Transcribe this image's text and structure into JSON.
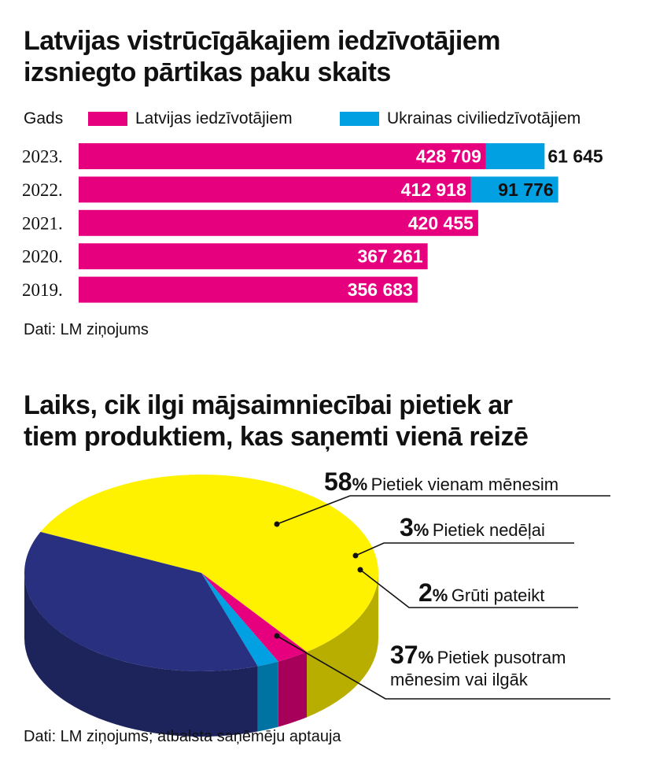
{
  "bar_section": {
    "title_line1": "Latvijas vistrūcīgākajiem iedzīvotājiem",
    "title_line2": "izsniegto pārtikas paku skaits",
    "legend_header": "Gads",
    "source": "Dati: LM ziņojums"
  },
  "pie_section": {
    "title_line1": "Laiks, cik ilgi mājsaimniecībai pietiek ar",
    "title_line2": "tiem produktiem, kas saņemti vienā reizē",
    "source": "Dati: LM ziņojums; atbalsta saņēmēju aptauja",
    "labels": [
      {
        "pct": "58",
        "sign": "%",
        "text1": "Pietiek vienam mēnesim",
        "text2": ""
      },
      {
        "pct": "3",
        "sign": "%",
        "text1": "Pietiek nedēļai",
        "text2": ""
      },
      {
        "pct": "2",
        "sign": "%",
        "text1": "Grūti pateikt",
        "text2": ""
      },
      {
        "pct": "37",
        "sign": "%",
        "text1": "Pietiek pusotram",
        "text2": "mēnesim vai ilgāk"
      }
    ]
  },
  "chart_data": [
    {
      "type": "bar",
      "orientation": "horizontal",
      "stacked": true,
      "title": "Latvijas vistrūcīgākajiem iedzīvotājiem izsniegto pārtikas paku skaits",
      "categories": [
        "2023.",
        "2022.",
        "2021.",
        "2020.",
        "2019."
      ],
      "category_axis_label": "Gads",
      "series": [
        {
          "name": "Latvijas iedzīvotājiem",
          "color": "#e6007e",
          "values": [
            428709,
            412918,
            420455,
            367261,
            356683
          ],
          "labels": [
            "428 709",
            "412 918",
            "420 455",
            "367 261",
            "356 683"
          ]
        },
        {
          "name": "Ukrainas civiliedzīvotājiem",
          "color": "#00a0e3",
          "values": [
            61645,
            91776,
            null,
            null,
            null
          ],
          "labels": [
            "61 645",
            "91 776",
            "",
            "",
            ""
          ]
        }
      ],
      "legend": "top",
      "grid": false
    },
    {
      "type": "pie",
      "style": "3d",
      "title": "Laiks, cik ilgi mājsaimniecībai pietiek ar tiem produktiem, kas saņemti vienā reizē",
      "slices": [
        {
          "label": "Pietiek vienam mēnesim",
          "value": 58,
          "color": "#fff200"
        },
        {
          "label": "Pietiek nedēļai",
          "value": 3,
          "color": "#e6007e"
        },
        {
          "label": "Grūti pateikt",
          "value": 2,
          "color": "#00a0e3"
        },
        {
          "label": "Pietiek pusotram mēnesim vai ilgāk",
          "value": 37,
          "color": "#28307f"
        }
      ]
    }
  ]
}
